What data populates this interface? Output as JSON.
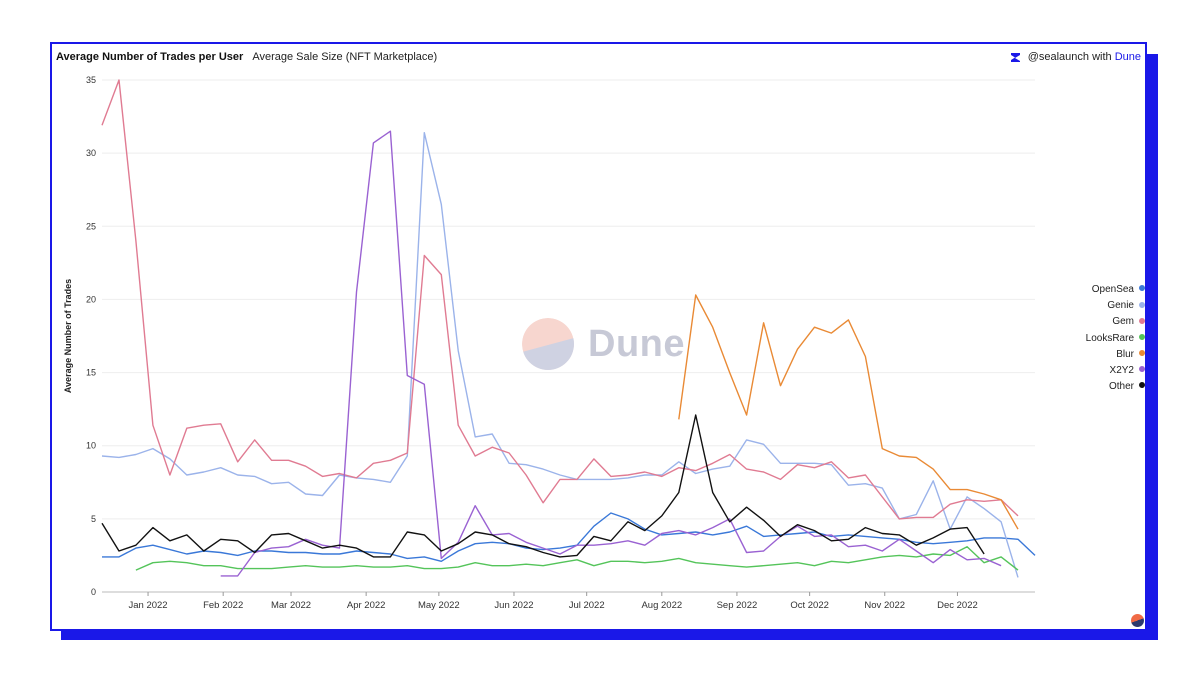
{
  "header": {
    "title": "Average Number of Trades per User",
    "subtitle": "Average Sale Size (NFT Marketplace)",
    "credit_handle": "@sealaunch with",
    "credit_brand": "Dune"
  },
  "watermark": {
    "text": "Dune"
  },
  "colors": {
    "frame": "#1a18e8",
    "grid": "#eeeeee"
  },
  "chart_data": {
    "type": "line",
    "title": "Average Number of Trades per User",
    "xlabel": "",
    "ylabel": "Average Number of Trades",
    "ylim": [
      0,
      35
    ],
    "yticks": [
      0,
      5,
      10,
      15,
      20,
      25,
      30,
      35
    ],
    "x_start": "2021-12-13",
    "x_step_days": 7,
    "xticks": [
      {
        "label": "Jan 2022",
        "date": "2022-01-01"
      },
      {
        "label": "Feb 2022",
        "date": "2022-02-01"
      },
      {
        "label": "Mar 2022",
        "date": "2022-03-01"
      },
      {
        "label": "Apr 2022",
        "date": "2022-04-01"
      },
      {
        "label": "May 2022",
        "date": "2022-05-01"
      },
      {
        "label": "Jun 2022",
        "date": "2022-06-01"
      },
      {
        "label": "Jul 2022",
        "date": "2022-07-01"
      },
      {
        "label": "Aug 2022",
        "date": "2022-08-01"
      },
      {
        "label": "Sep 2022",
        "date": "2022-09-01"
      },
      {
        "label": "Oct 2022",
        "date": "2022-10-01"
      },
      {
        "label": "Nov 2022",
        "date": "2022-11-01"
      },
      {
        "label": "Dec 2022",
        "date": "2022-12-01"
      }
    ],
    "legend_position": "right",
    "series": [
      {
        "name": "OpenSea",
        "color": "#3a78d8",
        "values": [
          2.4,
          2.4,
          3.0,
          3.2,
          2.9,
          2.6,
          2.8,
          2.7,
          2.5,
          2.8,
          2.8,
          2.7,
          2.7,
          2.6,
          2.6,
          2.8,
          2.7,
          2.6,
          2.3,
          2.4,
          2.1,
          2.8,
          3.3,
          3.4,
          3.3,
          3.0,
          2.9,
          3.0,
          3.2,
          4.5,
          5.4,
          5.0,
          4.3,
          3.9,
          4.0,
          4.1,
          3.9,
          4.1,
          4.5,
          3.8,
          3.9,
          4.0,
          4.1,
          3.8,
          3.9,
          3.8,
          3.7,
          3.6,
          3.4,
          3.3,
          3.4,
          3.5,
          3.7,
          3.7,
          3.6,
          2.5
        ]
      },
      {
        "name": "Genie",
        "color": "#9bb3ea",
        "values": [
          9.3,
          9.2,
          9.4,
          9.8,
          9.1,
          8.0,
          8.2,
          8.5,
          8.0,
          7.9,
          7.4,
          7.5,
          6.7,
          6.6,
          8.0,
          7.8,
          7.7,
          7.5,
          9.3,
          31.4,
          26.5,
          16.5,
          10.6,
          10.8,
          8.8,
          8.7,
          8.4,
          8.0,
          7.7,
          7.7,
          7.7,
          7.8,
          8.0,
          8.0,
          8.9,
          8.1,
          8.4,
          8.6,
          10.4,
          10.1,
          8.8,
          8.8,
          8.8,
          8.7,
          7.3,
          7.4,
          7.1,
          5.0,
          5.3,
          7.6,
          4.3,
          6.5,
          5.7,
          4.8,
          1.0,
          null
        ]
      },
      {
        "name": "Gem",
        "color": "#e07b92",
        "values": [
          31.9,
          35.0,
          24.0,
          11.4,
          8.0,
          11.2,
          11.4,
          11.5,
          8.9,
          10.4,
          9.0,
          9.0,
          8.6,
          7.9,
          8.1,
          7.8,
          8.8,
          9.0,
          9.5,
          23.0,
          21.7,
          11.4,
          9.3,
          9.9,
          9.5,
          8.0,
          6.1,
          7.7,
          7.7,
          9.1,
          7.9,
          8.0,
          8.2,
          7.9,
          8.5,
          8.3,
          8.8,
          9.4,
          8.4,
          8.2,
          7.7,
          8.7,
          8.5,
          8.9,
          7.8,
          8.0,
          6.5,
          5.0,
          5.1,
          5.1,
          6.0,
          6.3,
          6.2,
          6.3,
          5.2,
          null
        ]
      },
      {
        "name": "LooksRare",
        "color": "#54c45a",
        "values": [
          null,
          null,
          1.5,
          2.0,
          2.1,
          2.0,
          1.8,
          1.8,
          1.6,
          1.6,
          1.6,
          1.7,
          1.8,
          1.7,
          1.7,
          1.8,
          1.7,
          1.7,
          1.8,
          1.6,
          1.6,
          1.7,
          2.0,
          1.8,
          1.8,
          1.9,
          1.8,
          2.0,
          2.2,
          1.8,
          2.1,
          2.1,
          2.0,
          2.1,
          2.3,
          2.0,
          1.9,
          1.8,
          1.7,
          1.8,
          1.9,
          2.0,
          1.8,
          2.1,
          2.0,
          2.2,
          2.4,
          2.5,
          2.4,
          2.6,
          2.5,
          3.1,
          2.0,
          2.4,
          1.5,
          null
        ]
      },
      {
        "name": "Blur",
        "color": "#e98a35",
        "values": [
          null,
          null,
          null,
          null,
          null,
          null,
          null,
          null,
          null,
          null,
          null,
          null,
          null,
          null,
          null,
          null,
          null,
          null,
          null,
          null,
          null,
          null,
          null,
          null,
          null,
          null,
          null,
          null,
          null,
          null,
          null,
          null,
          null,
          null,
          11.8,
          20.3,
          18.1,
          15.0,
          12.1,
          18.4,
          14.1,
          16.6,
          18.1,
          17.7,
          18.6,
          16.1,
          9.8,
          9.3,
          9.2,
          8.4,
          7.0,
          7.0,
          6.7,
          6.3,
          4.3,
          null
        ]
      },
      {
        "name": "X2Y2",
        "color": "#9a62d2",
        "values": [
          null,
          null,
          null,
          null,
          null,
          null,
          null,
          1.1,
          1.1,
          2.7,
          3.0,
          3.1,
          3.6,
          3.2,
          3.0,
          20.5,
          30.7,
          31.5,
          14.8,
          14.2,
          2.3,
          3.4,
          5.9,
          3.9,
          4.0,
          3.4,
          3.0,
          2.6,
          3.2,
          3.2,
          3.3,
          3.5,
          3.2,
          4.0,
          4.2,
          3.9,
          4.4,
          5.0,
          2.7,
          2.8,
          3.8,
          4.5,
          3.8,
          3.9,
          3.1,
          3.2,
          2.8,
          3.6,
          2.8,
          2.0,
          2.9,
          2.2,
          2.3,
          1.8,
          null,
          null
        ]
      },
      {
        "name": "Other",
        "color": "#111111",
        "values": [
          4.7,
          2.8,
          3.2,
          4.4,
          3.5,
          3.9,
          2.8,
          3.6,
          3.5,
          2.7,
          3.9,
          4.0,
          3.5,
          3.0,
          3.2,
          3.0,
          2.4,
          2.4,
          4.1,
          3.9,
          2.8,
          3.3,
          4.1,
          3.9,
          3.3,
          3.1,
          2.7,
          2.4,
          2.5,
          3.8,
          3.5,
          4.8,
          4.2,
          5.2,
          6.8,
          12.1,
          6.8,
          4.8,
          5.8,
          4.9,
          3.8,
          4.6,
          4.2,
          3.5,
          3.6,
          4.4,
          4.0,
          3.9,
          3.2,
          3.7,
          4.3,
          4.4,
          2.6,
          null,
          null,
          null
        ]
      }
    ]
  }
}
